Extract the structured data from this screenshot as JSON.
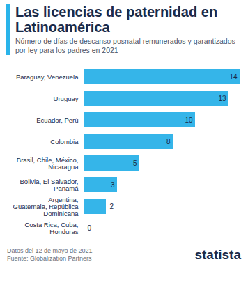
{
  "chart_data": {
    "type": "bar",
    "orientation": "horizontal",
    "title": "Las licencias de paternidad en Latinoamérica",
    "subtitle": "Número de días de descanso posnatal remunerados y garantizados por ley para los padres en 2021",
    "categories": [
      "Paraguay, Venezuela",
      "Uruguay",
      "Ecuador, Perú",
      "Colombia",
      "Brasil, Chile, México, Nicaragua",
      "Bolivia, El Salvador, Panamá",
      "Argentina, Guatemala, República Dominicana",
      "Costa Rica, Cuba, Honduras"
    ],
    "values": [
      14,
      13,
      10,
      8,
      5,
      3,
      2,
      0
    ],
    "color": "#35b5e9",
    "xlim": [
      0,
      14
    ],
    "xticks": [],
    "tick_labels": "y",
    "data_labels": true,
    "grid": false,
    "caption": [
      "Datos del 12 de mayo de 2021",
      "Fuente: Globalization Partners"
    ],
    "brand": "statista"
  }
}
